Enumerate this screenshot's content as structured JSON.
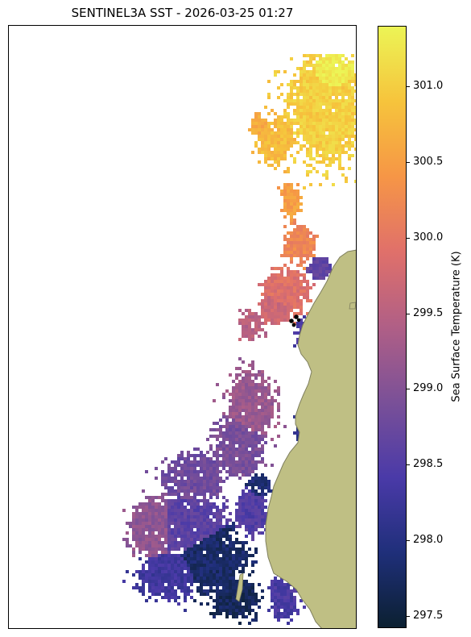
{
  "title": "SENTINEL3A SST - 2026-03-25 01:27",
  "colorbar": {
    "label": "Sea Surface Temperature (K)",
    "min": 297.42,
    "max": 301.4,
    "ticks": [
      "297.5",
      "298.0",
      "298.5",
      "299.0",
      "299.5",
      "300.0",
      "300.5",
      "301.0"
    ],
    "colormap": [
      "#0b2030",
      "#1f2f7a",
      "#4a3aa8",
      "#7a5098",
      "#b05f86",
      "#e0706a",
      "#f69646",
      "#f6c43c",
      "#ecf556"
    ]
  },
  "land_color": "#bfbf84",
  "land_edge_color": "#7f7f5e",
  "colors": {
    "background": "#ffffff",
    "frame": "#000000"
  }
}
